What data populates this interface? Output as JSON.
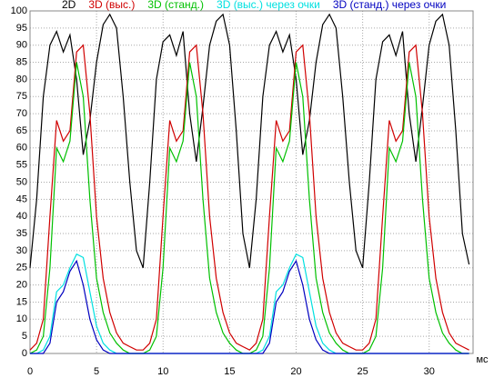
{
  "chart_data": {
    "type": "line",
    "x_label": "мс",
    "x": [
      0,
      0.5,
      1,
      1.5,
      2,
      2.5,
      3,
      3.5,
      4,
      4.5,
      5,
      5.5,
      6,
      6.5,
      7,
      7.5,
      8,
      8.5,
      9,
      9.5,
      10,
      10.5,
      11,
      11.5,
      12,
      12.5,
      13,
      13.5,
      14,
      14.5,
      15,
      15.5,
      16,
      16.5,
      17,
      17.5,
      18,
      18.5,
      19,
      19.5,
      20,
      20.5,
      21,
      21.5,
      22,
      22.5,
      23,
      23.5,
      24,
      24.5,
      25,
      25.5,
      26,
      26.5,
      27,
      27.5,
      28,
      28.5,
      29,
      29.5,
      30,
      30.5,
      31,
      31.5,
      32,
      32.5,
      33
    ],
    "series": [
      {
        "name": "2D",
        "color": "#000000",
        "values": [
          25,
          45,
          75,
          90,
          94,
          88,
          93,
          80,
          58,
          68,
          85,
          96,
          99,
          95,
          75,
          50,
          30,
          25,
          50,
          80,
          91,
          93,
          87,
          94,
          70,
          56,
          72,
          90,
          97,
          99,
          90,
          65,
          35,
          25,
          45,
          75,
          90,
          94,
          88,
          93,
          80,
          58,
          68,
          85,
          96,
          99,
          95,
          75,
          50,
          30,
          25,
          50,
          80,
          91,
          93,
          87,
          94,
          70,
          56,
          72,
          90,
          97,
          99,
          90,
          65,
          35,
          26
        ]
      },
      {
        "name": "3D (выс.)",
        "color": "#d00000",
        "values": [
          1,
          3,
          10,
          40,
          68,
          62,
          65,
          88,
          90,
          70,
          40,
          22,
          12,
          6,
          3,
          2,
          1,
          1,
          3,
          10,
          40,
          68,
          62,
          65,
          88,
          90,
          70,
          40,
          22,
          12,
          6,
          3,
          2,
          1,
          3,
          10,
          40,
          68,
          62,
          65,
          88,
          90,
          70,
          40,
          22,
          12,
          6,
          3,
          2,
          1,
          1,
          3,
          10,
          40,
          68,
          62,
          65,
          88,
          90,
          70,
          40,
          22,
          12,
          6,
          3,
          2,
          1
        ]
      },
      {
        "name": "3D (станд.)",
        "color": "#00c000",
        "values": [
          0,
          1,
          5,
          25,
          60,
          56,
          62,
          85,
          75,
          45,
          22,
          12,
          6,
          3,
          1,
          0,
          0,
          0,
          1,
          5,
          25,
          60,
          56,
          62,
          85,
          75,
          45,
          22,
          12,
          6,
          3,
          1,
          0,
          0,
          1,
          5,
          25,
          60,
          56,
          62,
          85,
          75,
          45,
          22,
          12,
          6,
          3,
          1,
          0,
          0,
          0,
          1,
          5,
          25,
          60,
          56,
          62,
          85,
          75,
          45,
          22,
          12,
          6,
          3,
          1,
          0,
          0
        ]
      },
      {
        "name": "3D (выс.) через очки",
        "color": "#00e0e0",
        "values": [
          0,
          0,
          1,
          5,
          18,
          20,
          25,
          29,
          28,
          18,
          8,
          3,
          1,
          0,
          0,
          0,
          0,
          0,
          0,
          0,
          0,
          0,
          0,
          0,
          0,
          0,
          0,
          0,
          0,
          0,
          0,
          0,
          0,
          0,
          0,
          1,
          5,
          18,
          20,
          25,
          29,
          28,
          18,
          8,
          3,
          1,
          0,
          0,
          0,
          0,
          0,
          0,
          0,
          0,
          0,
          0,
          0,
          0,
          0,
          0,
          0,
          0,
          0,
          0,
          0,
          0,
          0
        ]
      },
      {
        "name": "3D (станд.) через очки",
        "color": "#0000c0",
        "values": [
          0,
          0,
          0,
          3,
          15,
          18,
          24,
          27,
          20,
          10,
          4,
          1,
          0,
          0,
          0,
          0,
          0,
          0,
          0,
          0,
          0,
          0,
          0,
          0,
          0,
          0,
          0,
          0,
          0,
          0,
          0,
          0,
          0,
          0,
          0,
          0,
          3,
          15,
          18,
          24,
          27,
          20,
          10,
          4,
          1,
          0,
          0,
          0,
          0,
          0,
          0,
          0,
          0,
          0,
          0,
          0,
          0,
          0,
          0,
          0,
          0,
          0,
          0,
          0,
          0,
          0,
          0
        ]
      }
    ],
    "xlim": [
      0,
      33.3
    ],
    "xticks": [
      0,
      5,
      10,
      15,
      20,
      25,
      30
    ],
    "ylim": [
      0,
      100
    ],
    "yticks": [
      0,
      5,
      10,
      15,
      20,
      25,
      30,
      35,
      40,
      45,
      50,
      55,
      60,
      65,
      70,
      75,
      80,
      85,
      90,
      95,
      100
    ],
    "grid": true
  }
}
